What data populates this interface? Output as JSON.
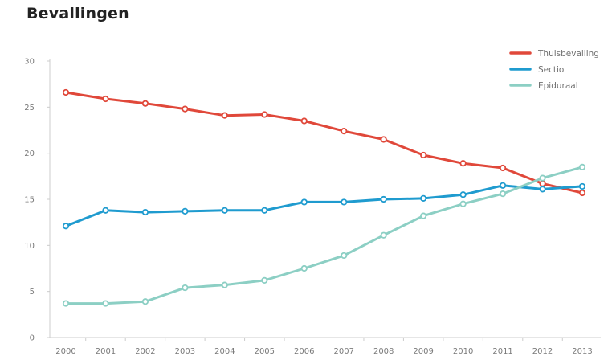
{
  "chart_data": {
    "type": "line",
    "title": "Bevallingen",
    "xlabel": "",
    "ylabel": "",
    "x": [
      "2000",
      "2001",
      "2002",
      "2003",
      "2004",
      "2005",
      "2006",
      "2007",
      "2008",
      "2009",
      "2010",
      "2011",
      "2012",
      "2013"
    ],
    "ylim": [
      0,
      30
    ],
    "yticks": [
      0,
      5,
      10,
      15,
      20,
      25,
      30
    ],
    "grid": false,
    "legend": "top-right",
    "series": [
      {
        "name": "Thuisbevalling",
        "color": "#e0483a",
        "values": [
          26.6,
          25.9,
          25.4,
          24.8,
          24.1,
          24.2,
          23.5,
          22.4,
          21.5,
          19.8,
          18.9,
          18.4,
          16.7,
          15.7
        ]
      },
      {
        "name": "Sectio",
        "color": "#1f9bcf",
        "values": [
          12.1,
          13.8,
          13.6,
          13.7,
          13.8,
          13.8,
          14.7,
          14.7,
          15.0,
          15.1,
          15.5,
          16.5,
          16.1,
          16.4
        ]
      },
      {
        "name": "Epiduraal",
        "color": "#8ccfc4",
        "values": [
          3.7,
          3.7,
          3.9,
          5.4,
          5.7,
          6.2,
          7.5,
          8.9,
          11.1,
          13.2,
          14.5,
          15.6,
          17.3,
          18.5
        ]
      }
    ]
  }
}
